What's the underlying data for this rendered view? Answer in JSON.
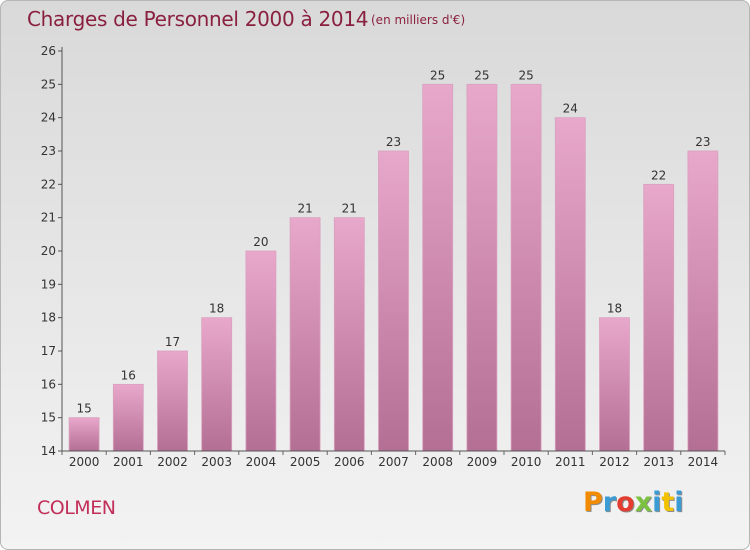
{
  "header": {
    "title": "Charges de Personnel 2000 à 2014",
    "unit": "(en milliers d'€)"
  },
  "footer": {
    "commune": "COLMEN",
    "brand": "Proxiti",
    "brand_colors": [
      "#f28b00",
      "#3a9bd5",
      "#e43d30",
      "#7cc242",
      "#3a9bd5",
      "#f2c200",
      "#3a9bd5"
    ]
  },
  "chart_data": {
    "type": "bar",
    "categories": [
      "2000",
      "2001",
      "2002",
      "2003",
      "2004",
      "2005",
      "2006",
      "2007",
      "2008",
      "2009",
      "2010",
      "2011",
      "2012",
      "2013",
      "2014"
    ],
    "values": [
      15,
      16,
      17,
      18,
      20,
      21,
      21,
      23,
      25,
      25,
      25,
      24,
      18,
      22,
      23
    ],
    "data_labels": [
      "15",
      "16",
      "17",
      "18",
      "20",
      "21",
      "21",
      "23",
      "25",
      "25",
      "25",
      "24",
      "18",
      "22",
      "23"
    ],
    "yticks": [
      14,
      15,
      16,
      17,
      18,
      19,
      20,
      21,
      22,
      23,
      24,
      25,
      26
    ],
    "ylim": [
      14,
      26
    ],
    "title": "Charges de Personnel 2000 à 2014",
    "xlabel": "",
    "ylabel": "",
    "grid": false,
    "bar_color_light": "#e8a8cb",
    "bar_color_dark": "#b46f94",
    "label_color": "#333333"
  }
}
